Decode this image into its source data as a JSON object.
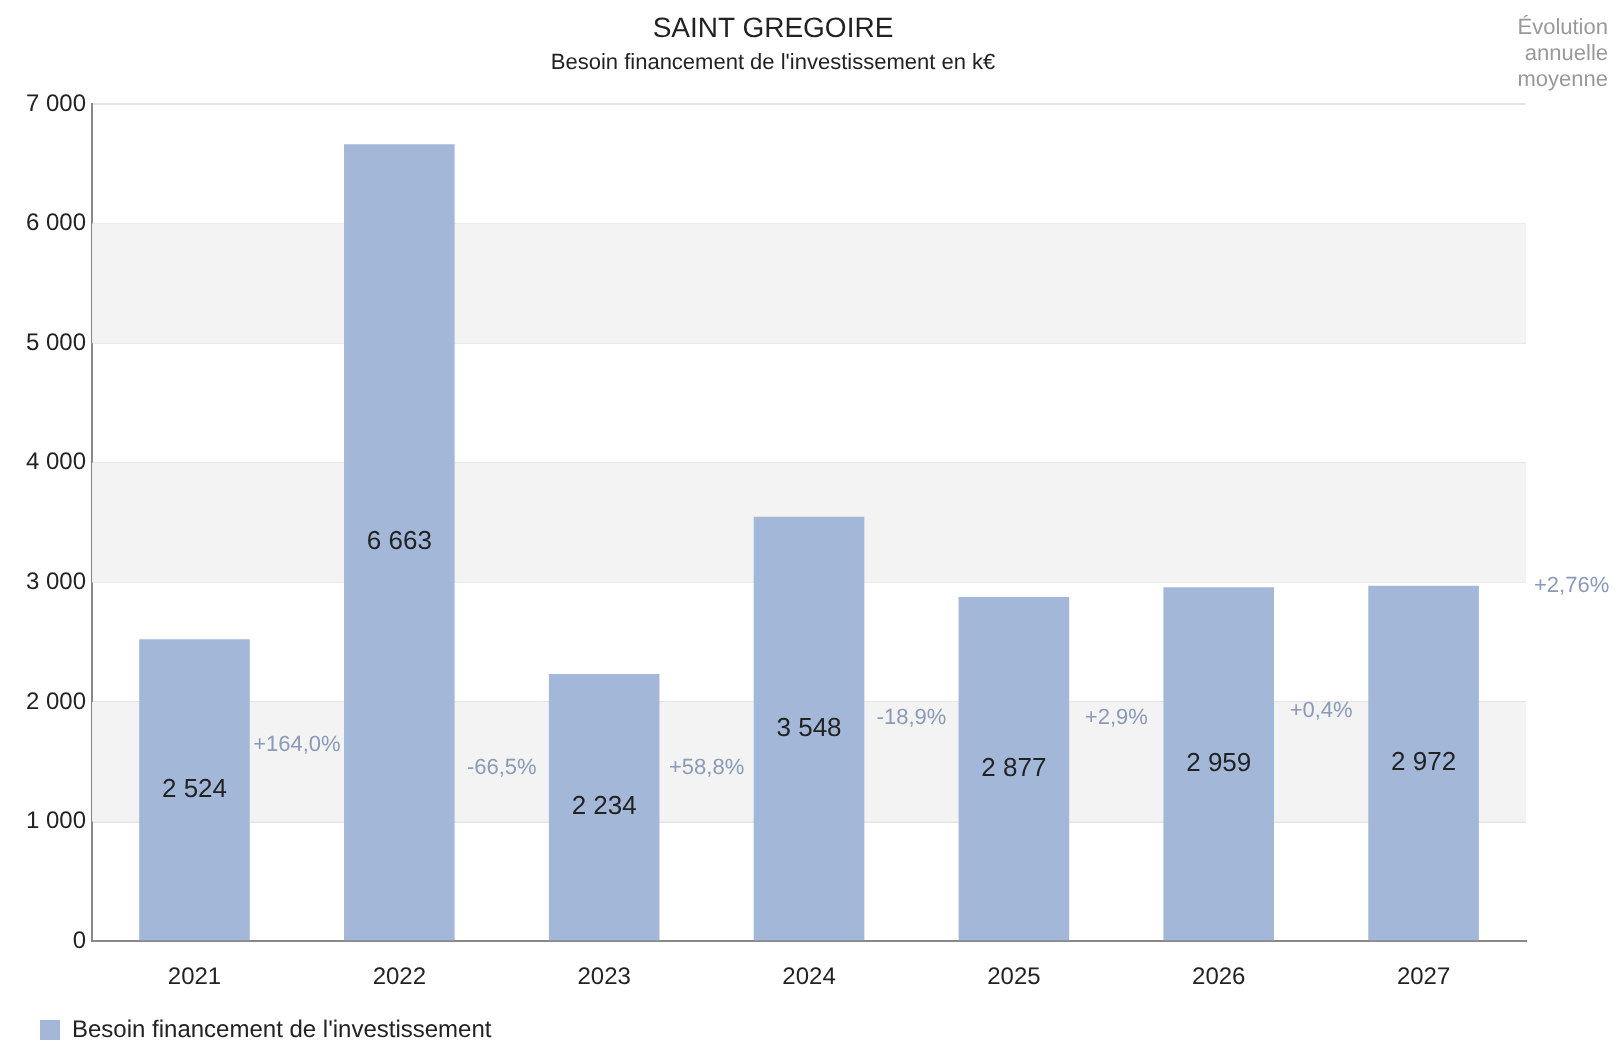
{
  "chart_data": {
    "type": "bar",
    "title": "SAINT GREGOIRE",
    "subtitle": "Besoin financement de l'investissement en k€",
    "categories": [
      "2021",
      "2022",
      "2023",
      "2024",
      "2025",
      "2026",
      "2027"
    ],
    "series": [
      {
        "name": "Besoin financement de l'investissement",
        "color": "#a3b8d8",
        "values": [
          2524,
          6663,
          2234,
          3548,
          2877,
          2959,
          2972
        ],
        "value_labels": [
          "2 524",
          "6 663",
          "2 234",
          "3 548",
          "2 877",
          "2 959",
          "2 972"
        ]
      }
    ],
    "ylim": [
      0,
      7000
    ],
    "yticks": [
      0,
      {
        "value": 1000,
        "label": "1 000"
      },
      {
        "value": 2000,
        "label": "2 000"
      },
      {
        "value": 3000,
        "label": "3 000"
      },
      {
        "value": 4000,
        "label": "4 000"
      },
      {
        "value": 5000,
        "label": "5 000"
      },
      {
        "value": 6000,
        "label": "6 000"
      },
      {
        "value": 7000,
        "label": "7 000"
      }
    ],
    "grid": "y",
    "legend": "bottom left",
    "annotations": [
      "+164,0%",
      "-66,5%",
      "+58,8%",
      "-18,9%",
      "+2,9%",
      "+0,4%",
      "+2,76%",
      "Évolution annuelle moyenne"
    ]
  }
}
